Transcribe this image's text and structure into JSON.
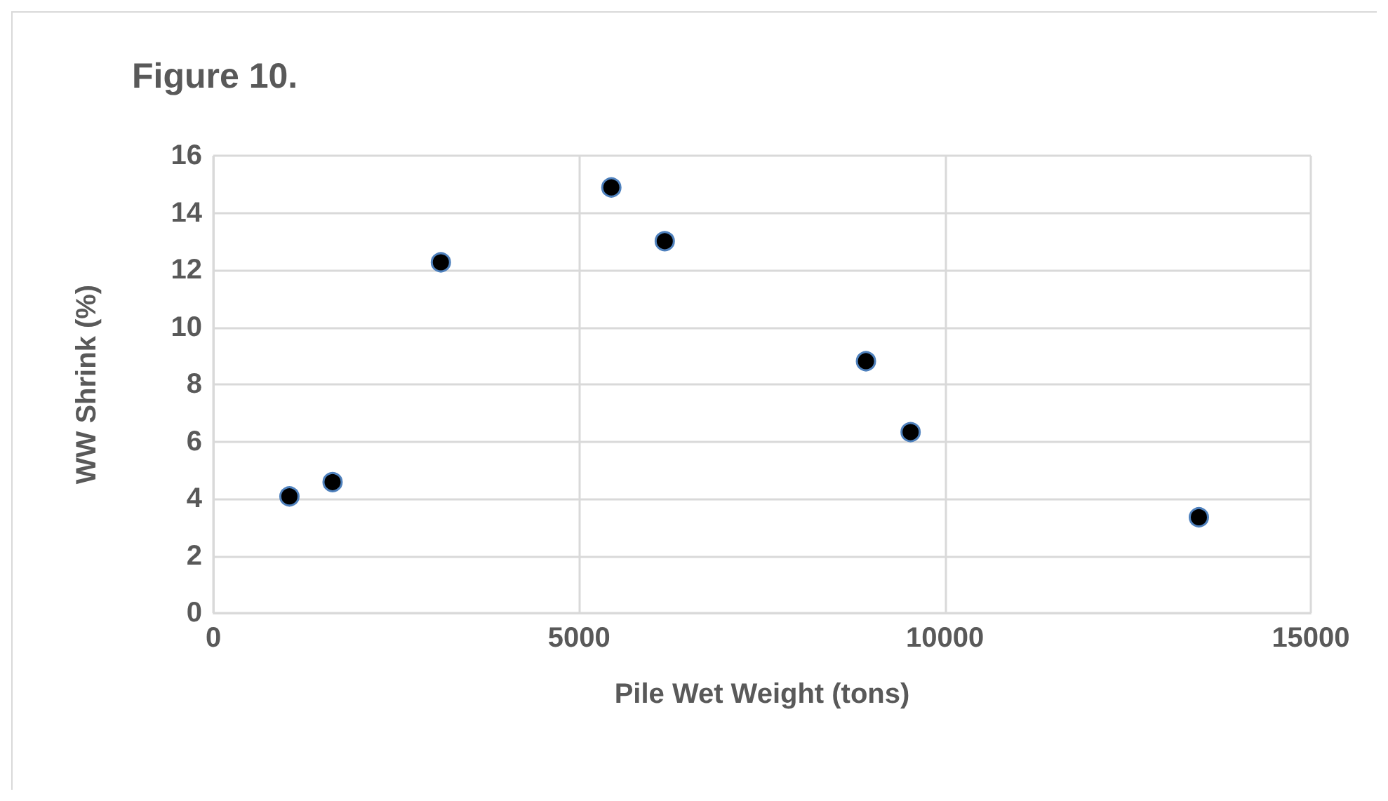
{
  "chart_data": {
    "type": "scatter",
    "title": "Figure 10.",
    "xlabel": "Pile Wet Weight (tons)",
    "ylabel": "WW Shrink (%)",
    "x": [
      1040,
      1630,
      3110,
      5440,
      6170,
      8920,
      9530,
      13470
    ],
    "series": [
      {
        "color": "#000000",
        "values": [
          4.08,
          4.58,
          12.27,
          14.89,
          13.01,
          8.81,
          6.33,
          3.35
        ]
      }
    ],
    "xlim": [
      0,
      15000
    ],
    "xticks": [
      0,
      5000,
      10000,
      15000
    ],
    "ylim": [
      0,
      16
    ],
    "yticks": [
      0,
      2,
      4,
      6,
      8,
      10,
      12,
      14,
      16
    ],
    "grid": true,
    "marker": "circle"
  }
}
